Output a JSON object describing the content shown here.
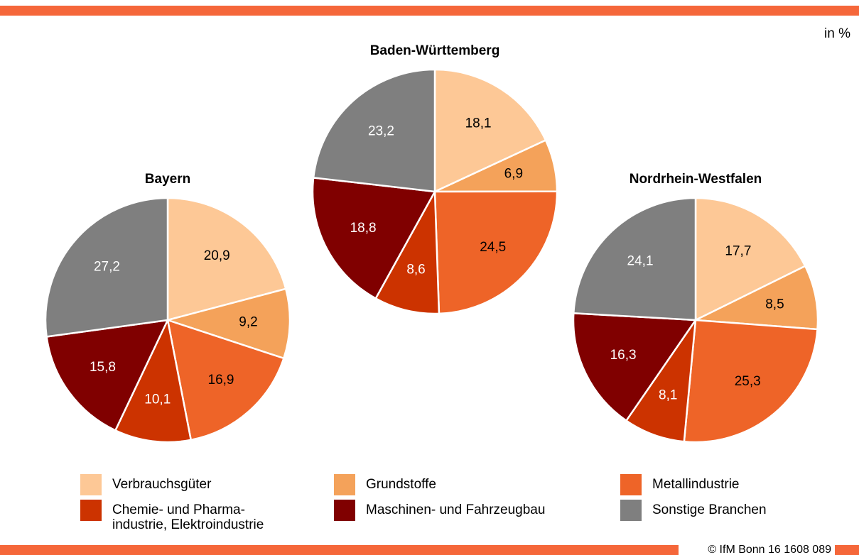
{
  "unit": "in %",
  "footer": "© IfM Bonn 16 1608 089",
  "legend": {
    "labels": [
      "Verbrauchsgüter",
      "Grundstoffe",
      "Metallindustrie",
      "Chemie- und Pharma-\nindustrie, Elektroindustrie",
      "Maschinen- und Fahrzeugbau",
      "Sonstige Branchen"
    ],
    "colors": [
      "#fdc896",
      "#f4a25a",
      "#ee6428",
      "#cc3300",
      "#800000",
      "#7f7f7f"
    ]
  },
  "chart_data": [
    {
      "type": "pie",
      "title": "Bayern",
      "values": [
        20.9,
        9.2,
        16.9,
        10.1,
        15.8,
        27.2
      ],
      "value_labels": [
        "20,9",
        "9,2",
        "16,9",
        "10,1",
        "15,8",
        "27,2"
      ]
    },
    {
      "type": "pie",
      "title": "Baden-Württemberg",
      "values": [
        18.1,
        6.9,
        24.5,
        8.6,
        18.8,
        23.2
      ],
      "value_labels": [
        "18,1",
        "6,9",
        "24,5",
        "8,6",
        "18,8",
        "23,2"
      ]
    },
    {
      "type": "pie",
      "title": "Nordrhein-Westfalen",
      "values": [
        17.7,
        8.5,
        25.3,
        8.1,
        16.3,
        24.1
      ],
      "value_labels": [
        "17,7",
        "8,5",
        "25,3",
        "8,1",
        "16,3",
        "24,1"
      ]
    }
  ]
}
